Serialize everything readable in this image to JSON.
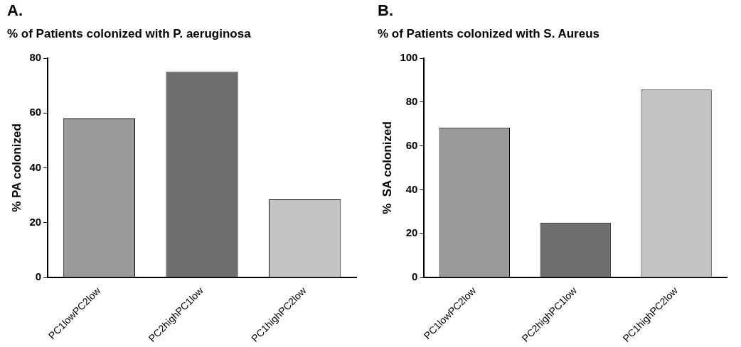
{
  "chart_data": [
    {
      "type": "bar",
      "annotations": [
        "A."
      ],
      "title": "% of Patients colonized with P. aeruginosa",
      "ylabel": "% PA colonized",
      "categories": [
        "PC1lowPC2low",
        "PC2highPC1low",
        "PC1highPC2low"
      ],
      "values": [
        58,
        75,
        28.5
      ],
      "colors": [
        "#9a9a9a",
        "#6e6e6e",
        "#c4c4c4"
      ],
      "ylim": [
        0,
        80
      ],
      "yticks": [
        0,
        20,
        40,
        60,
        80
      ],
      "grid": false,
      "legend": false
    },
    {
      "type": "bar",
      "annotations": [
        "B."
      ],
      "title": "% of Patients colonized with S. Aureus",
      "ylabel": "%  SA colonized",
      "categories": [
        "PC1lowPC2low",
        "PC2highPC1low",
        "PC1highPC2low"
      ],
      "values": [
        68.4,
        25,
        85.7
      ],
      "colors": [
        "#9a9a9a",
        "#6e6e6e",
        "#c4c4c4"
      ],
      "ylim": [
        0,
        100
      ],
      "yticks": [
        0,
        20,
        40,
        60,
        80,
        100
      ],
      "grid": false,
      "legend": false
    }
  ]
}
